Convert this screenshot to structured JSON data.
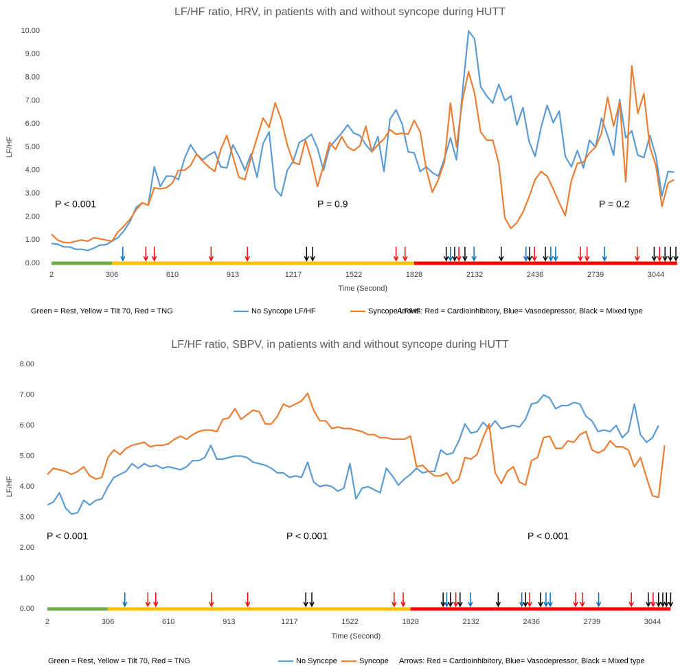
{
  "chart_data": [
    {
      "type": "line",
      "title": "LF/HF ratio, HRV, in patients with and without syncope during HUTT",
      "x_label": "Time (Second)",
      "y_label": "LF/HF",
      "categories": [
        "2",
        null,
        null,
        null,
        null,
        null,
        null,
        null,
        null,
        null,
        "306",
        null,
        null,
        null,
        null,
        null,
        null,
        null,
        null,
        null,
        "610",
        null,
        null,
        null,
        null,
        null,
        null,
        null,
        null,
        null,
        "913",
        null,
        null,
        null,
        null,
        null,
        null,
        null,
        null,
        null,
        "1217",
        null,
        null,
        null,
        null,
        null,
        null,
        null,
        null,
        null,
        "1522",
        null,
        null,
        null,
        null,
        null,
        null,
        null,
        null,
        null,
        "1828",
        null,
        null,
        null,
        null,
        null,
        null,
        null,
        null,
        null,
        "2132",
        null,
        null,
        null,
        null,
        null,
        null,
        null,
        null,
        null,
        "2436",
        null,
        null,
        null,
        null,
        null,
        null,
        null,
        null,
        null,
        "2739",
        null,
        null,
        null,
        null,
        null,
        null,
        null,
        null,
        null,
        "3044",
        null,
        null,
        null
      ],
      "series": [
        {
          "name": "No Syncope LF/HF",
          "color": "#5b9bd5",
          "values": [
            0.85,
            0.82,
            0.7,
            0.7,
            0.6,
            0.6,
            0.55,
            0.65,
            0.78,
            0.8,
            0.95,
            1.1,
            1.4,
            1.8,
            2.4,
            2.6,
            2.5,
            4.15,
            3.3,
            3.75,
            3.75,
            3.6,
            4.5,
            5.1,
            4.7,
            4.45,
            4.65,
            4.8,
            4.15,
            4.1,
            5.1,
            4.6,
            4.0,
            4.7,
            3.7,
            5.15,
            5.65,
            3.2,
            2.9,
            4.0,
            4.4,
            5.2,
            5.35,
            5.55,
            4.95,
            4.0,
            5.0,
            5.3,
            5.6,
            5.95,
            5.6,
            5.5,
            5.1,
            4.8,
            5.45,
            3.95,
            6.2,
            6.6,
            6.0,
            4.8,
            4.75,
            3.95,
            4.15,
            3.9,
            3.75,
            4.5,
            5.4,
            4.45,
            7.4,
            10.0,
            9.65,
            7.6,
            7.2,
            6.9,
            7.7,
            7.0,
            7.2,
            5.95,
            6.7,
            5.25,
            4.6,
            5.85,
            6.8,
            6.05,
            6.55,
            4.6,
            4.15,
            4.85,
            4.1,
            5.3,
            5.0,
            6.25,
            5.5,
            4.65,
            7.05,
            5.4,
            5.7,
            4.65,
            4.55,
            5.5,
            4.6,
            2.9,
            3.95,
            3.92
          ]
        },
        {
          "name": "Syncope LF/HF",
          "color": "#ed7d31",
          "values": [
            1.25,
            1.0,
            0.9,
            0.88,
            0.95,
            1.0,
            0.95,
            1.1,
            1.05,
            1.0,
            0.95,
            1.35,
            1.6,
            1.9,
            2.3,
            2.6,
            2.5,
            3.25,
            3.2,
            3.25,
            3.45,
            4.0,
            4.0,
            4.2,
            4.7,
            4.4,
            4.15,
            3.95,
            4.9,
            5.5,
            4.6,
            3.7,
            3.6,
            4.55,
            5.4,
            6.25,
            5.85,
            6.9,
            6.2,
            5.1,
            4.35,
            4.25,
            5.3,
            4.45,
            3.3,
            4.2,
            5.2,
            4.9,
            5.45,
            5.0,
            4.85,
            5.05,
            5.9,
            4.8,
            5.1,
            5.35,
            5.75,
            5.55,
            5.6,
            5.55,
            6.15,
            5.65,
            4.05,
            3.05,
            3.6,
            4.35,
            6.9,
            5.0,
            7.05,
            8.25,
            7.3,
            5.65,
            5.3,
            5.3,
            4.3,
            1.95,
            1.5,
            1.75,
            2.2,
            2.85,
            3.6,
            3.95,
            3.75,
            3.2,
            2.6,
            2.05,
            3.55,
            4.3,
            4.35,
            4.75,
            5.0,
            5.6,
            7.15,
            5.9,
            6.95,
            3.5,
            8.5,
            6.45,
            7.3,
            5.0,
            4.2,
            2.45,
            3.45,
            3.6
          ]
        }
      ],
      "ylim": [
        0,
        10
      ],
      "yticks": [
        {
          "value": 0,
          "label": "0.00"
        },
        {
          "value": 1,
          "label": "1.00"
        },
        {
          "value": 2,
          "label": "2.00"
        },
        {
          "value": 3,
          "label": "3.00"
        },
        {
          "value": 4,
          "label": "4.00"
        },
        {
          "value": 5,
          "label": "5.00"
        },
        {
          "value": 6,
          "label": "6.00"
        },
        {
          "value": 7,
          "label": "7.00"
        },
        {
          "value": 8,
          "label": "8.00"
        },
        {
          "value": 9,
          "label": "9.00"
        },
        {
          "value": 10,
          "label": "10.00"
        }
      ],
      "annotations": [
        "P < 0.001",
        "P = 0.9",
        "P = 0.2"
      ],
      "phase_note": "Green = Rest, Yellow = Tilt 70, Red = TNG",
      "arrow_note": "Arrows: Red = Cardioinhibitory, Blue= Vasodepressor, Black = Mixed type",
      "phase_bands": [
        {
          "color": "#70ad47",
          "start": 0,
          "end": 10
        },
        {
          "color": "#ffc000",
          "start": 10,
          "end": 60
        },
        {
          "color": "#ff0000",
          "start": 60,
          "end": 103.5
        }
      ],
      "arrows": [
        {
          "x": 11.8,
          "color": "#0070c0"
        },
        {
          "x": 15.6,
          "color": "#ff0000"
        },
        {
          "x": 17.0,
          "color": "#ff0000"
        },
        {
          "x": 26.4,
          "color": "#ff0000"
        },
        {
          "x": 32.4,
          "color": "#ff0000"
        },
        {
          "x": 42.2,
          "color": "#000000"
        },
        {
          "x": 43.2,
          "color": "#000000"
        },
        {
          "x": 57.0,
          "color": "#ff0000"
        },
        {
          "x": 58.5,
          "color": "#ff0000"
        },
        {
          "x": 65.3,
          "color": "#000000"
        },
        {
          "x": 66.0,
          "color": "#0070c0"
        },
        {
          "x": 66.7,
          "color": "#000000"
        },
        {
          "x": 67.4,
          "color": "#ff0000"
        },
        {
          "x": 68.4,
          "color": "#000000"
        },
        {
          "x": 69.9,
          "color": "#0070c0"
        },
        {
          "x": 74.4,
          "color": "#000000"
        },
        {
          "x": 78.5,
          "color": "#0070c0"
        },
        {
          "x": 79.1,
          "color": "#000000"
        },
        {
          "x": 79.9,
          "color": "#ff0000"
        },
        {
          "x": 81.7,
          "color": "#000000"
        },
        {
          "x": 82.6,
          "color": "#0070c0"
        },
        {
          "x": 83.4,
          "color": "#0070c0"
        },
        {
          "x": 87.5,
          "color": "#ff0000"
        },
        {
          "x": 88.6,
          "color": "#ff0000"
        },
        {
          "x": 91.5,
          "color": "#0070c0"
        },
        {
          "x": 96.9,
          "color": "#ff0000"
        },
        {
          "x": 99.7,
          "color": "#000000"
        },
        {
          "x": 100.6,
          "color": "#ff0000"
        },
        {
          "x": 101.5,
          "color": "#000000"
        },
        {
          "x": 102.4,
          "color": "#000000"
        },
        {
          "x": 103.3,
          "color": "#000000"
        }
      ]
    },
    {
      "type": "line",
      "title": "LF/HF ratio, SBPV, in patients with and without syncope during HUTT",
      "x_label": "Time (Second)",
      "y_label": "LF/HF",
      "categories": [
        "2",
        null,
        null,
        null,
        null,
        null,
        null,
        null,
        null,
        null,
        "306",
        null,
        null,
        null,
        null,
        null,
        null,
        null,
        null,
        null,
        "610",
        null,
        null,
        null,
        null,
        null,
        null,
        null,
        null,
        null,
        "913",
        null,
        null,
        null,
        null,
        null,
        null,
        null,
        null,
        null,
        "1217",
        null,
        null,
        null,
        null,
        null,
        null,
        null,
        null,
        null,
        "1522",
        null,
        null,
        null,
        null,
        null,
        null,
        null,
        null,
        null,
        "1828",
        null,
        null,
        null,
        null,
        null,
        null,
        null,
        null,
        null,
        "2132",
        null,
        null,
        null,
        null,
        null,
        null,
        null,
        null,
        null,
        "2436",
        null,
        null,
        null,
        null,
        null,
        null,
        null,
        null,
        null,
        "2739",
        null,
        null,
        null,
        null,
        null,
        null,
        null,
        null,
        null,
        "3044",
        null,
        null
      ],
      "series": [
        {
          "name": "No Syncope",
          "color": "#5b9bd5",
          "values": [
            3.4,
            3.5,
            3.8,
            3.3,
            3.1,
            3.15,
            3.55,
            3.4,
            3.55,
            3.6,
            4.0,
            4.3,
            4.4,
            4.5,
            4.75,
            4.6,
            4.75,
            4.65,
            4.7,
            4.6,
            4.65,
            4.6,
            4.55,
            4.65,
            4.85,
            4.85,
            4.95,
            5.35,
            4.9,
            4.9,
            4.95,
            5.0,
            5.0,
            4.95,
            4.8,
            4.75,
            4.7,
            4.6,
            4.45,
            4.45,
            4.3,
            4.35,
            4.3,
            4.8,
            4.15,
            4.0,
            4.05,
            4.0,
            3.85,
            3.95,
            4.75,
            3.6,
            3.95,
            4.0,
            3.9,
            3.8,
            4.6,
            4.35,
            4.05,
            4.25,
            4.4,
            4.6,
            4.45,
            4.5,
            4.5,
            5.2,
            5.05,
            5.1,
            5.5,
            6.05,
            5.75,
            5.8,
            6.1,
            5.9,
            6.15,
            5.9,
            5.95,
            6.0,
            5.95,
            6.2,
            6.7,
            6.75,
            7.0,
            6.9,
            6.55,
            6.65,
            6.65,
            6.75,
            6.7,
            6.3,
            6.15,
            5.8,
            5.85,
            5.8,
            6.0,
            5.6,
            5.8,
            6.7,
            5.7,
            5.45,
            5.6,
            6.0,
            null
          ]
        },
        {
          "name": "Syncope",
          "color": "#ed7d31",
          "values": [
            4.4,
            4.6,
            4.55,
            4.5,
            4.4,
            4.5,
            4.65,
            4.35,
            4.25,
            4.3,
            4.95,
            5.2,
            5.05,
            5.25,
            5.35,
            5.4,
            5.45,
            5.3,
            5.35,
            5.35,
            5.4,
            5.55,
            5.65,
            5.55,
            5.7,
            5.8,
            5.85,
            5.85,
            5.8,
            6.2,
            6.25,
            6.55,
            6.2,
            6.35,
            6.5,
            6.45,
            6.05,
            6.05,
            6.3,
            6.7,
            6.6,
            6.7,
            6.8,
            7.05,
            6.5,
            6.15,
            6.15,
            5.9,
            5.95,
            5.9,
            5.9,
            5.85,
            5.8,
            5.7,
            5.7,
            5.6,
            5.6,
            5.55,
            5.55,
            5.55,
            5.65,
            4.65,
            4.7,
            4.5,
            4.35,
            4.35,
            4.45,
            4.1,
            4.25,
            4.95,
            4.9,
            5.05,
            5.6,
            6.05,
            4.45,
            4.1,
            4.5,
            4.65,
            4.15,
            4.05,
            4.85,
            4.95,
            5.6,
            5.65,
            5.25,
            5.25,
            5.5,
            5.45,
            5.7,
            5.8,
            5.2,
            5.1,
            5.2,
            5.5,
            5.3,
            5.3,
            5.2,
            4.65,
            4.95,
            4.3,
            3.7,
            3.65,
            5.35
          ]
        }
      ],
      "ylim": [
        0,
        8
      ],
      "yticks": [
        {
          "value": 0,
          "label": "0.00"
        },
        {
          "value": 1,
          "label": "1.00"
        },
        {
          "value": 2,
          "label": "2.00"
        },
        {
          "value": 3,
          "label": "3.00"
        },
        {
          "value": 4,
          "label": "4.00"
        },
        {
          "value": 5,
          "label": "5.00"
        },
        {
          "value": 6,
          "label": "6.00"
        },
        {
          "value": 7,
          "label": "7.00"
        },
        {
          "value": 8,
          "label": "8.00"
        }
      ],
      "annotations": [
        "P < 0.001",
        "P < 0.001",
        "P < 0.001"
      ],
      "phase_note": "Green = Rest, Yellow = Tilt 70, Red = TNG",
      "arrow_note": "Arrows: Red = Cardioinhibitory,  Blue= Vasodepressor, Black = Mixed type",
      "phase_bands": [
        {
          "color": "#70ad47",
          "start": 0,
          "end": 10
        },
        {
          "color": "#ffc000",
          "start": 10,
          "end": 60
        },
        {
          "color": "#ff0000",
          "start": 60,
          "end": 103
        }
      ],
      "arrows": [
        {
          "x": 12.8,
          "color": "#0070c0"
        },
        {
          "x": 16.6,
          "color": "#ff0000"
        },
        {
          "x": 17.9,
          "color": "#ff0000"
        },
        {
          "x": 27.1,
          "color": "#ff0000"
        },
        {
          "x": 33.1,
          "color": "#ff0000"
        },
        {
          "x": 42.7,
          "color": "#000000"
        },
        {
          "x": 43.7,
          "color": "#000000"
        },
        {
          "x": 57.3,
          "color": "#ff0000"
        },
        {
          "x": 58.8,
          "color": "#ff0000"
        },
        {
          "x": 65.4,
          "color": "#000000"
        },
        {
          "x": 66.0,
          "color": "#0070c0"
        },
        {
          "x": 66.6,
          "color": "#000000"
        },
        {
          "x": 67.5,
          "color": "#ff0000"
        },
        {
          "x": 68.2,
          "color": "#000000"
        },
        {
          "x": 69.9,
          "color": "#0070c0"
        },
        {
          "x": 74.5,
          "color": "#000000"
        },
        {
          "x": 78.4,
          "color": "#0070c0"
        },
        {
          "x": 79.0,
          "color": "#000000"
        },
        {
          "x": 79.7,
          "color": "#ff0000"
        },
        {
          "x": 81.5,
          "color": "#000000"
        },
        {
          "x": 82.4,
          "color": "#0070c0"
        },
        {
          "x": 83.1,
          "color": "#0070c0"
        },
        {
          "x": 87.3,
          "color": "#ff0000"
        },
        {
          "x": 88.4,
          "color": "#ff0000"
        },
        {
          "x": 91.1,
          "color": "#0070c0"
        },
        {
          "x": 96.5,
          "color": "#ff0000"
        },
        {
          "x": 99.3,
          "color": "#000000"
        },
        {
          "x": 100.1,
          "color": "#ff0000"
        },
        {
          "x": 101.0,
          "color": "#000000"
        },
        {
          "x": 101.7,
          "color": "#000000"
        },
        {
          "x": 102.3,
          "color": "#000000"
        },
        {
          "x": 103.0,
          "color": "#000000"
        }
      ]
    }
  ]
}
